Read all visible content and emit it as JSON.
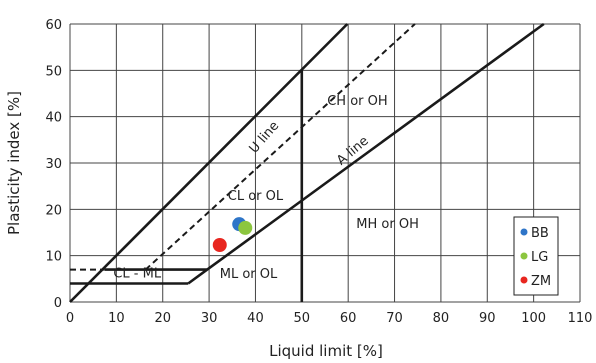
{
  "chart_data": {
    "type": "scatter",
    "xlabel": "Liquid limit [%]",
    "ylabel": "Plasticity index [%]",
    "xlim": [
      0,
      110
    ],
    "ylim": [
      0,
      60
    ],
    "x_ticks": [
      0,
      10,
      20,
      30,
      40,
      50,
      60,
      70,
      80,
      90,
      100,
      110
    ],
    "y_ticks": [
      0,
      10,
      20,
      30,
      40,
      50,
      60
    ],
    "grid": true,
    "legend_position": "bottom-right",
    "series": [
      {
        "name": "BB",
        "color": "#2e75c8",
        "points": [
          [
            36.5,
            16.8
          ]
        ]
      },
      {
        "name": "LG",
        "color": "#8cc63f",
        "points": [
          [
            37.8,
            16.0
          ]
        ]
      },
      {
        "name": "ZM",
        "color": "#e8261f",
        "points": [
          [
            32.3,
            12.3
          ]
        ]
      }
    ],
    "lines": [
      {
        "label": "U line",
        "style": "dashed",
        "points": [
          [
            16.3,
            7
          ],
          [
            74.4,
            60
          ]
        ]
      },
      {
        "label": "A line",
        "style": "solid",
        "points": [
          [
            25.5,
            4
          ],
          [
            29.6,
            7
          ],
          [
            102.2,
            60
          ]
        ]
      },
      {
        "label": "",
        "style": "solid",
        "points": [
          [
            0,
            0
          ],
          [
            59.8,
            60
          ]
        ]
      },
      {
        "label": "",
        "style": "solid",
        "points": [
          [
            50,
            0
          ],
          [
            50,
            50
          ]
        ]
      }
    ],
    "boundary_lines": [
      {
        "style": "dashed",
        "points": [
          [
            0,
            7
          ],
          [
            7.5,
            7
          ]
        ]
      },
      {
        "style": "solid",
        "points": [
          [
            7.5,
            7
          ],
          [
            29.6,
            7
          ]
        ]
      },
      {
        "style": "solid",
        "points": [
          [
            0,
            4
          ],
          [
            25.5,
            4
          ]
        ]
      }
    ],
    "regions": [
      {
        "label": "CH or OH",
        "at": [
          62,
          42.5
        ]
      },
      {
        "label": "CL or OL",
        "at": [
          40,
          22
        ]
      },
      {
        "label": "MH or OH",
        "at": [
          68.5,
          16
        ]
      },
      {
        "label": "ML or OL",
        "at": [
          38.5,
          5.2
        ]
      },
      {
        "label": "CL - ML",
        "at": [
          14.5,
          5.3
        ]
      }
    ],
    "line_labels": [
      {
        "label": "U line",
        "at": [
          42.5,
          35
        ],
        "angle": -49
      },
      {
        "label": "A line",
        "at": [
          61.5,
          32
        ],
        "angle": -40
      }
    ]
  }
}
